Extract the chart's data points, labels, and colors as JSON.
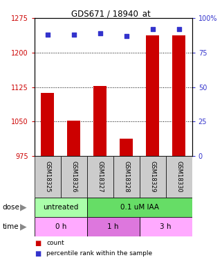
{
  "title": "GDS671 / 18940_at",
  "samples": [
    "GSM18325",
    "GSM18326",
    "GSM18327",
    "GSM18328",
    "GSM18329",
    "GSM18330"
  ],
  "bar_values": [
    1113,
    1052,
    1128,
    1013,
    1237,
    1237
  ],
  "percentile_values": [
    88,
    88,
    89,
    87,
    92,
    92
  ],
  "ylim_left": [
    975,
    1275
  ],
  "ylim_right": [
    0,
    100
  ],
  "yticks_left": [
    975,
    1050,
    1125,
    1200,
    1275
  ],
  "yticks_right": [
    0,
    25,
    50,
    75,
    100
  ],
  "ytick_labels_left": [
    "975",
    "1050",
    "1125",
    "1200",
    "1275"
  ],
  "ytick_labels_right": [
    "0",
    "25",
    "50",
    "75",
    "100%"
  ],
  "bar_color": "#cc0000",
  "dot_color": "#3333cc",
  "dose_groups": [
    {
      "label": "untreated",
      "samples": [
        0,
        1
      ],
      "color": "#aaffaa"
    },
    {
      "label": "0.1 uM IAA",
      "samples": [
        2,
        3,
        4,
        5
      ],
      "color": "#66dd66"
    }
  ],
  "time_groups": [
    {
      "label": "0 h",
      "samples": [
        0,
        1
      ],
      "color": "#ffaaff"
    },
    {
      "label": "1 h",
      "samples": [
        2,
        3
      ],
      "color": "#dd77dd"
    },
    {
      "label": "3 h",
      "samples": [
        4,
        5
      ],
      "color": "#ffaaff"
    }
  ],
  "dose_label": "dose",
  "time_label": "time",
  "legend_bar_label": "count",
  "legend_dot_label": "percentile rank within the sample",
  "background_color": "#ffffff",
  "plot_bg_color": "#ffffff",
  "sample_bg_color": "#cccccc",
  "gridline_ticks": [
    1050,
    1125,
    1200
  ]
}
